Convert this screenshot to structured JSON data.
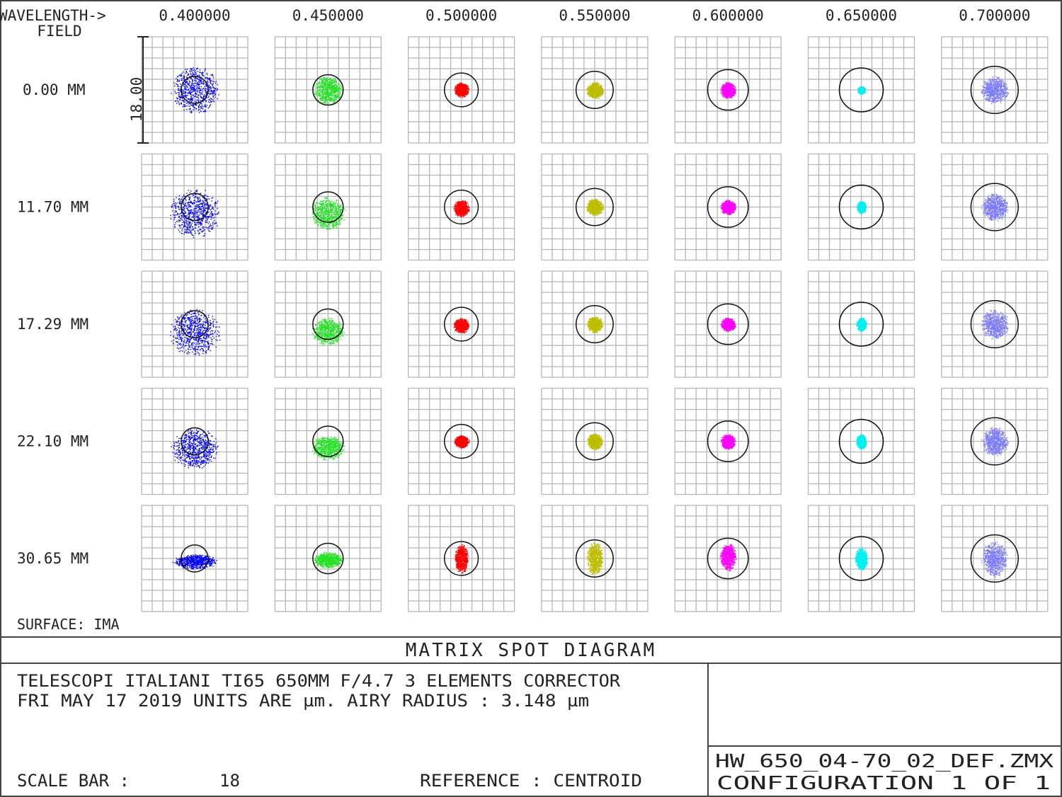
{
  "header": {
    "wavelength_label": "WAVELENGTH->",
    "field_label": "FIELD"
  },
  "footer": {
    "surface": "SURFACE: IMA",
    "title": "MATRIX SPOT DIAGRAM",
    "line1": "TELESCOPI ITALIANI TI65 650MM F/4.7  3 ELEMENTS CORRECTOR",
    "line2": "FRI MAY 17 2019  UNITS ARE µm.  AIRY RADIUS : 3.148 µm",
    "scale_bar_label": "SCALE BAR  :",
    "scale_bar_value": "18",
    "reference": "REFERENCE  : CENTROID",
    "filename": "HW_650_04-70_02_DEF.ZMX",
    "configuration": "CONFIGURATION  1  OF  1"
  },
  "chart_data": {
    "type": "scatter",
    "title": "MATRIX SPOT DIAGRAM",
    "units": "µm",
    "box_size_um": 18,
    "scale_bar_tick_label": "18.00",
    "airy_radius_um_at_0_55": 3.148,
    "reference": "CENTROID",
    "wavelengths": [
      "0.400000",
      "0.450000",
      "0.500000",
      "0.550000",
      "0.600000",
      "0.650000",
      "0.700000"
    ],
    "wavelength_values_um": [
      0.4,
      0.45,
      0.5,
      0.55,
      0.6,
      0.65,
      0.7
    ],
    "fields": [
      "0.00 MM",
      "11.70 MM",
      "17.29 MM",
      "22.10 MM",
      "30.65 MM"
    ],
    "colors": [
      "#0000ff",
      "#22e022",
      "#ff0000",
      "#bdbd00",
      "#ff00ff",
      "#00f0f0",
      "#7a7aff"
    ],
    "spot_extent_note_format": "[half-width µm, half-height µm, y-offset µm] per field per wavelength",
    "spots": [
      [
        [
          4.2,
          4.2,
          0
        ],
        [
          2.6,
          2.6,
          0
        ],
        [
          1.3,
          1.3,
          0
        ],
        [
          1.5,
          1.5,
          0
        ],
        [
          1.4,
          1.4,
          0
        ],
        [
          0.7,
          0.7,
          0
        ],
        [
          2.4,
          2.4,
          0
        ]
      ],
      [
        [
          4.4,
          4.3,
          1.0
        ],
        [
          3.0,
          2.9,
          1.0
        ],
        [
          1.4,
          1.5,
          0.2
        ],
        [
          1.5,
          1.5,
          0
        ],
        [
          1.4,
          1.3,
          0
        ],
        [
          0.8,
          1.1,
          0
        ],
        [
          2.4,
          2.4,
          0
        ]
      ],
      [
        [
          4.4,
          4.2,
          1.4
        ],
        [
          2.8,
          2.5,
          1.2
        ],
        [
          1.4,
          1.3,
          0.2
        ],
        [
          1.4,
          1.4,
          0
        ],
        [
          1.3,
          1.2,
          0
        ],
        [
          0.9,
          1.2,
          0
        ],
        [
          2.4,
          2.6,
          0
        ]
      ],
      [
        [
          4.2,
          3.6,
          1.2
        ],
        [
          2.8,
          2.2,
          1.0
        ],
        [
          1.3,
          1.1,
          0
        ],
        [
          1.4,
          1.4,
          0
        ],
        [
          1.3,
          1.3,
          0
        ],
        [
          0.9,
          1.3,
          0
        ],
        [
          2.4,
          2.6,
          0
        ]
      ],
      [
        [
          3.8,
          1.3,
          0.5
        ],
        [
          2.6,
          1.4,
          0.2
        ],
        [
          1.2,
          2.5,
          0
        ],
        [
          1.4,
          3.0,
          0
        ],
        [
          1.4,
          2.4,
          -0.3
        ],
        [
          1.1,
          2.0,
          0
        ],
        [
          2.3,
          3.1,
          0
        ]
      ]
    ]
  }
}
